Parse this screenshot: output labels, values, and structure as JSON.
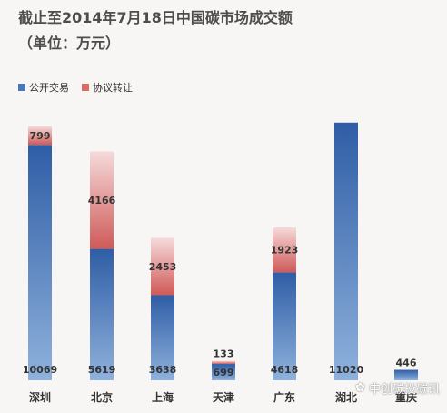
{
  "header": {
    "title": "截止至2014年7月18日中国碳市场成交额",
    "subtitle": "（单位：万元）"
  },
  "colors": {
    "public": "#4a78b8",
    "agreement": "#d96b69",
    "text": "#333333"
  },
  "watermark_text": "中创碳投碳讯",
  "chart_data": {
    "type": "bar",
    "stacked": true,
    "categories": [
      "深圳",
      "北京",
      "上海",
      "天津",
      "广东",
      "湖北",
      "重庆"
    ],
    "series": [
      {
        "name": "公开交易",
        "values": [
          10069,
          5619,
          3638,
          699,
          4618,
          11020,
          446
        ]
      },
      {
        "name": "协议转让",
        "values": [
          799,
          4166,
          2453,
          133,
          1923,
          null,
          null
        ]
      }
    ],
    "title": "截止至2014年7月18日中国碳市场成交额",
    "subtitle": "（单位：万元）",
    "legend": "top-left",
    "grid": false
  }
}
